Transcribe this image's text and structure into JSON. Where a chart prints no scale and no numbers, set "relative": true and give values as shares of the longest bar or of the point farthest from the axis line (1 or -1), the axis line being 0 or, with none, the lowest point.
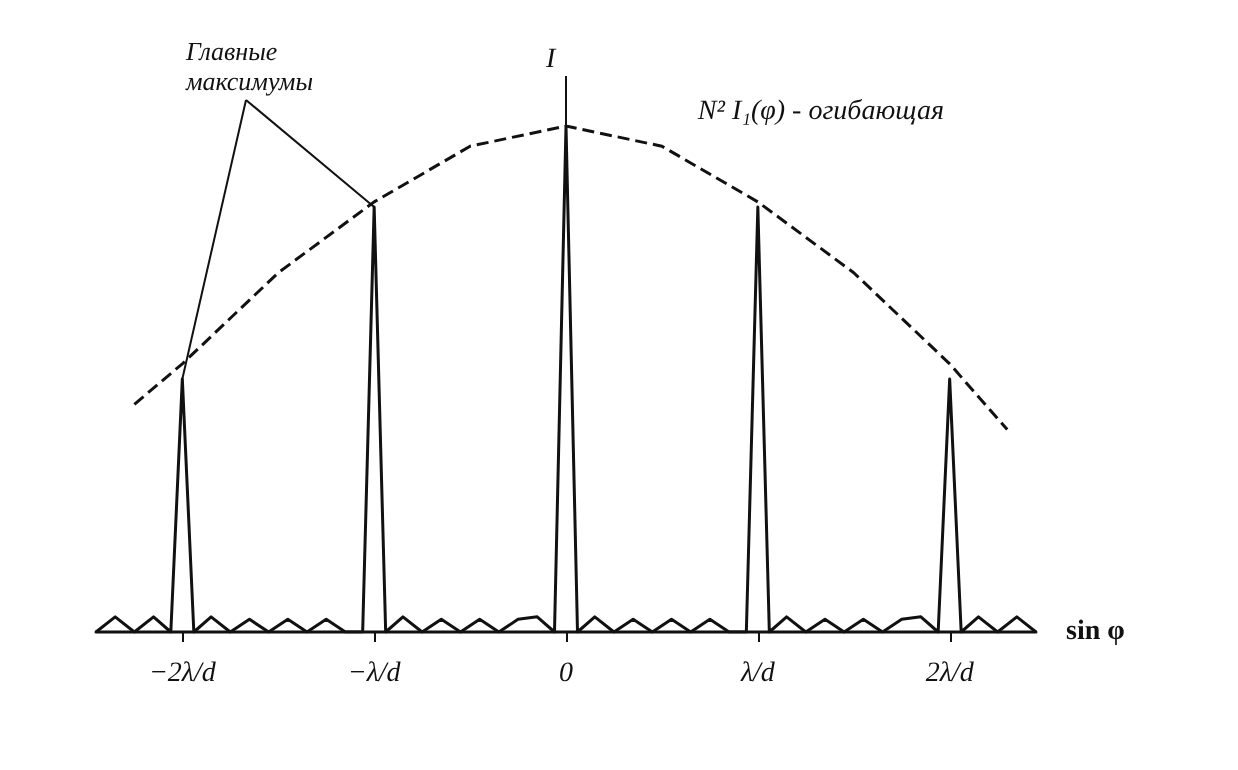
{
  "chart_data": {
    "type": "line",
    "relative": true,
    "xlabel": "sin φ",
    "ylabel": "I",
    "annotations": [
      "Главные максимумы"
    ],
    "xlim": [
      -2.45,
      2.45
    ],
    "xticks": [
      {
        "value": -2,
        "label": "−2λ/d"
      },
      {
        "value": -1,
        "label": "−λ/d"
      },
      {
        "value": 0,
        "label": "0"
      },
      {
        "value": 1,
        "label": "λ/d"
      },
      {
        "value": 2,
        "label": "2λ/d"
      }
    ],
    "grid": false,
    "legend": false,
    "marker": "none",
    "series": [
      {
        "color": "#111111",
        "line_style": "solid",
        "x": [
          -2.45,
          -2.35,
          -2.25,
          -2.15,
          -2.06,
          -2,
          -1.94,
          -1.85,
          -1.75,
          -1.65,
          -1.55,
          -1.45,
          -1.35,
          -1.25,
          -1.15,
          -1.06,
          -1,
          -0.94,
          -0.85,
          -0.75,
          -0.65,
          -0.55,
          -0.45,
          -0.35,
          -0.25,
          -0.15,
          -0.06,
          0,
          0.06,
          0.15,
          0.25,
          0.35,
          0.45,
          0.55,
          0.65,
          0.75,
          0.85,
          0.94,
          1,
          1.06,
          1.15,
          1.25,
          1.35,
          1.45,
          1.55,
          1.65,
          1.75,
          1.85,
          1.94,
          2,
          2.06,
          2.15,
          2.25,
          2.35,
          2.45
        ],
        "values": [
          0,
          0.03,
          0,
          0.03,
          0,
          0.5,
          0,
          0.03,
          0,
          0.025,
          0,
          0.025,
          0,
          0.025,
          0,
          0,
          0.84,
          0,
          0.03,
          0,
          0.025,
          0,
          0.025,
          0,
          0.025,
          0.03,
          0,
          1,
          0,
          0.03,
          0,
          0.025,
          0,
          0.025,
          0,
          0.025,
          0,
          0,
          0.84,
          0,
          0.03,
          0,
          0.025,
          0,
          0.025,
          0,
          0.025,
          0.03,
          0,
          0.5,
          0,
          0.03,
          0,
          0.03,
          0
        ]
      },
      {
        "name": "N² I₁(φ) - огибающая",
        "color": "#111111",
        "line_style": "dashed",
        "x": [
          -2.25,
          -2,
          -1.5,
          -1,
          -0.5,
          0,
          0.5,
          1,
          1.5,
          2,
          2.3
        ],
        "values": [
          0.45,
          0.53,
          0.71,
          0.85,
          0.96,
          1.0,
          0.96,
          0.85,
          0.71,
          0.53,
          0.4
        ]
      }
    ]
  }
}
